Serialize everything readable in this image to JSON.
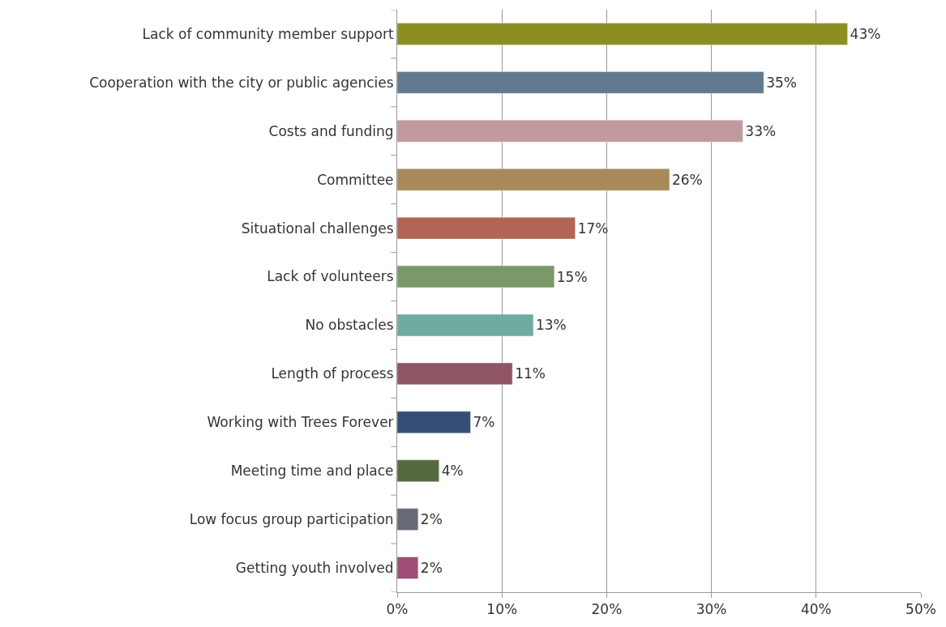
{
  "chart_data": {
    "type": "bar",
    "orientation": "horizontal",
    "categories": [
      "Lack of community member support",
      "Cooperation with the city or public agencies",
      "Costs and funding",
      "Committee",
      "Situational challenges",
      "Lack of volunteers",
      "No obstacles",
      "Length of process",
      "Working with Trees Forever",
      "Meeting time and place",
      "Low focus group participation",
      "Getting youth involved"
    ],
    "values": [
      43,
      35,
      33,
      26,
      17,
      15,
      13,
      11,
      7,
      4,
      2,
      2
    ],
    "value_labels": [
      "43%",
      "35%",
      "33%",
      "26%",
      "17%",
      "15%",
      "13%",
      "11%",
      "7%",
      "4%",
      "2%",
      "2%"
    ],
    "colors": [
      "#8b8f22",
      "#627a8f",
      "#c09a9f",
      "#a88a5a",
      "#b26552",
      "#7a9868",
      "#6fac9f",
      "#905565",
      "#354e75",
      "#566a40",
      "#666a74",
      "#a14c74"
    ],
    "xlim": [
      0,
      50
    ],
    "xticks": [
      {
        "value": 0,
        "label": "0%"
      },
      {
        "value": 10,
        "label": "10%"
      },
      {
        "value": 20,
        "label": "20%"
      },
      {
        "value": 30,
        "label": "30%"
      },
      {
        "value": 40,
        "label": "40%"
      },
      {
        "value": 50,
        "label": "50%"
      }
    ],
    "grid": "x",
    "legend": false
  }
}
